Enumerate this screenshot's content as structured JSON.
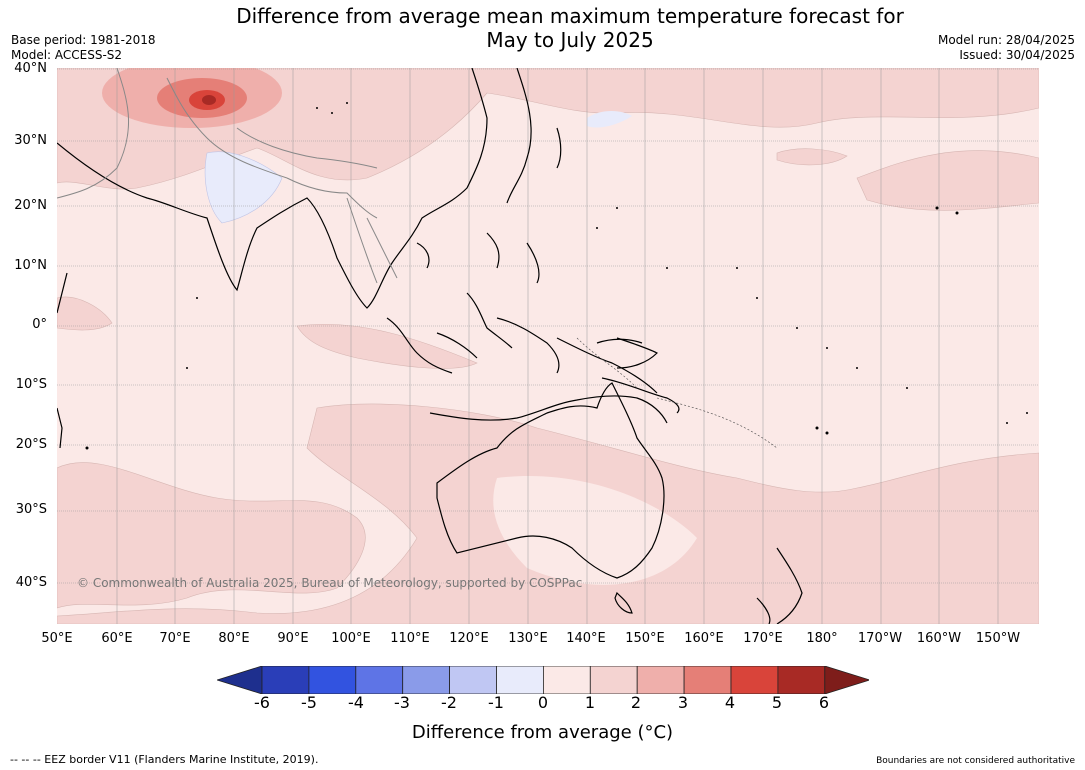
{
  "title_line1": "Difference from average mean maximum temperature forecast for",
  "title_line2": "May to July 2025",
  "meta_left": [
    "Base period: 1981-2018",
    "Model: ACCESS-S2"
  ],
  "meta_right": [
    "Model run: 28/04/2025",
    "Issued: 30/04/2025"
  ],
  "lat_labels": [
    "40°N",
    "30°N",
    "20°N",
    "10°N",
    "0°",
    "10°S",
    "20°S",
    "30°S",
    "40°S"
  ],
  "lon_labels": [
    "50°E",
    "60°E",
    "70°E",
    "80°E",
    "90°E",
    "100°E",
    "110°E",
    "120°E",
    "130°E",
    "140°E",
    "150°E",
    "160°E",
    "170°E",
    "180°",
    "170°W",
    "160°W",
    "150°W"
  ],
  "copyright": "© Commonwealth of Australia 2025, Bureau of Meteorology, supported by COSPPac",
  "colorbar": {
    "ticks": [
      "-6",
      "-5",
      "-4",
      "-3",
      "-2",
      "-1",
      "0",
      "1",
      "2",
      "3",
      "4",
      "5",
      "6"
    ],
    "colors": [
      "#1e2f8e",
      "#2a3eb8",
      "#3253e0",
      "#5e74e6",
      "#8a9be9",
      "#c0c7f3",
      "#e8ebfb",
      "#fbe9e7",
      "#f4d3d1",
      "#efafab",
      "#e57f77",
      "#d9443a",
      "#a82a25",
      "#7e1d1a"
    ],
    "label": "Difference from average (°C)"
  },
  "footer_left": "--  --  -- EEZ border V11 (Flanders Marine Institute, 2019).",
  "footer_right": "Boundaries are not considered authoritative"
}
